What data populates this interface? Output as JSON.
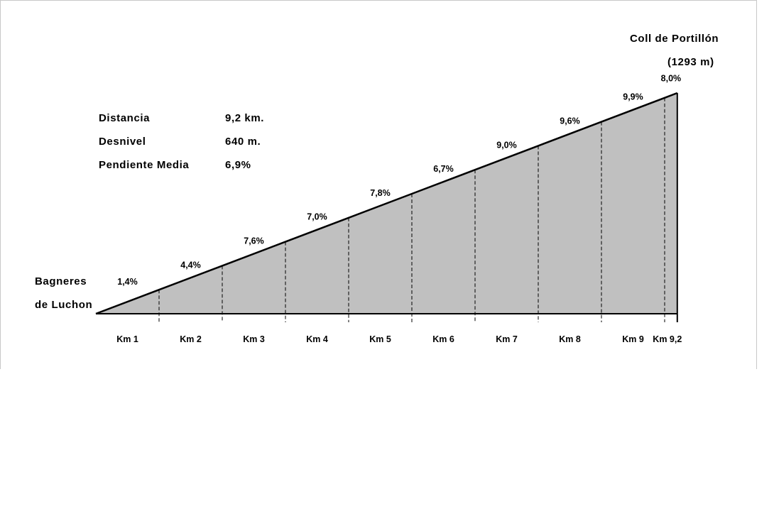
{
  "chart_data": {
    "type": "area",
    "title": "Coll de Portillón",
    "subtitle": "(1293 m)",
    "start_label_line1": "Bagneres",
    "start_label_line2": "de Luchon",
    "stats": [
      {
        "label": "Distancia",
        "value": "9,2 km."
      },
      {
        "label": "Desnivel",
        "value": "640 m."
      },
      {
        "label": "Pendiente Media",
        "value": "6,9%"
      }
    ],
    "x_unit": "km",
    "x": [
      0,
      1,
      2,
      3,
      4,
      5,
      6,
      7,
      8,
      9,
      9.2
    ],
    "x_tick_labels": [
      "Km 1",
      "Km 2",
      "Km 3",
      "Km 4",
      "Km 5",
      "Km 6",
      "Km 7",
      "Km 8",
      "Km 9",
      "Km 9,2"
    ],
    "segment_gradients": [
      "1,4%",
      "4,4%",
      "7,6%",
      "7,0%",
      "7,8%",
      "6,7%",
      "9,0%",
      "9,6%",
      "9,9%",
      "8,0%"
    ],
    "colors": {
      "fill": "#c0c0c0",
      "line": "#000000",
      "frame": "#c8c8c8"
    }
  }
}
